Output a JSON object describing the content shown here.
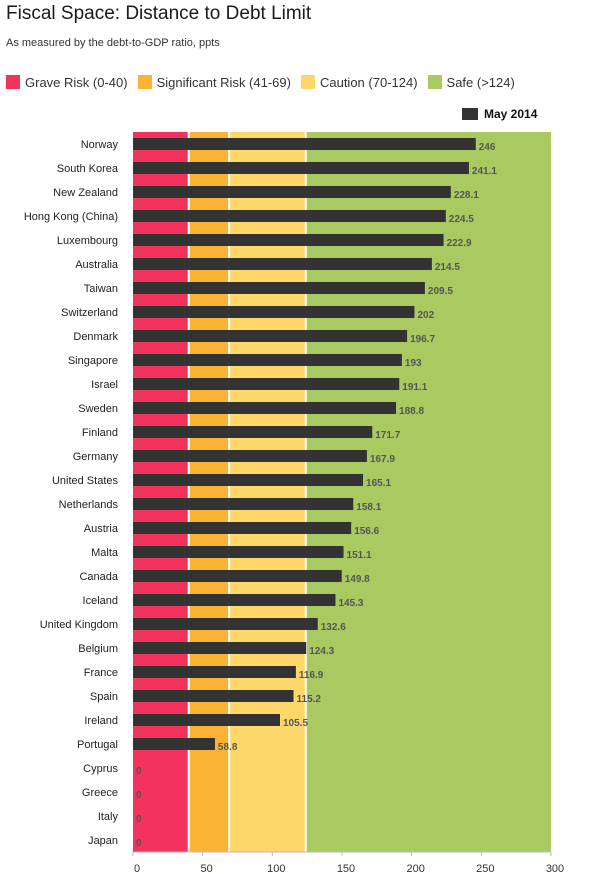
{
  "chart_data": {
    "type": "bar",
    "orientation": "horizontal",
    "title": "Fiscal Space: Distance to Debt Limit",
    "subtitle": "As measured by the debt-to-GDP ratio, ppts",
    "zones": [
      {
        "label": "Grave Risk (0-40)",
        "from": 0,
        "to": 40,
        "color": "#f2335e"
      },
      {
        "label": "Significant Risk (41-69)",
        "from": 40,
        "to": 69,
        "color": "#fbb335"
      },
      {
        "label": "Caution (70-124)",
        "from": 69,
        "to": 124,
        "color": "#fdd76a"
      },
      {
        "label": "Safe (>124)",
        "from": 124,
        "to": 300,
        "color": "#a9c961"
      }
    ],
    "series": [
      {
        "name": "May 2014",
        "color": "#333333"
      }
    ],
    "categories": [
      "Norway",
      "South Korea",
      "New Zealand",
      "Hong Kong (China)",
      "Luxembourg",
      "Australia",
      "Taiwan",
      "Switzerland",
      "Denmark",
      "Singapore",
      "Israel",
      "Sweden",
      "Finland",
      "Germany",
      "United States",
      "Netherlands",
      "Austria",
      "Malta",
      "Canada",
      "Iceland",
      "United Kingdom",
      "Belgium",
      "France",
      "Spain",
      "Ireland",
      "Portugal",
      "Cyprus",
      "Greece",
      "Italy",
      "Japan"
    ],
    "values": [
      246,
      241.1,
      228.1,
      224.5,
      222.9,
      214.5,
      209.5,
      202,
      196.7,
      193,
      191.1,
      188.8,
      171.7,
      167.9,
      165.1,
      158.1,
      156.6,
      151.1,
      149.8,
      145.3,
      132.6,
      124.3,
      116.9,
      115.2,
      105.5,
      58.8,
      0,
      0,
      0,
      0
    ],
    "value_labels": [
      "246",
      "241.1",
      "228.1",
      "224.5",
      "222.9",
      "214.5",
      "209.5",
      "202",
      "196.7",
      "193",
      "191.1",
      "188.8",
      "171.7",
      "167.9",
      "165.1",
      "158.1",
      "156.6",
      "151.1",
      "149.8",
      "145.3",
      "132.6",
      "124.3",
      "116.9",
      "115.2",
      "105.5",
      "58.8",
      "0",
      "0",
      "0",
      "0"
    ],
    "xlim": [
      0,
      300
    ],
    "xticks": [
      0,
      50,
      100,
      150,
      200,
      250,
      300
    ],
    "grid": false,
    "legend_position": "top"
  }
}
